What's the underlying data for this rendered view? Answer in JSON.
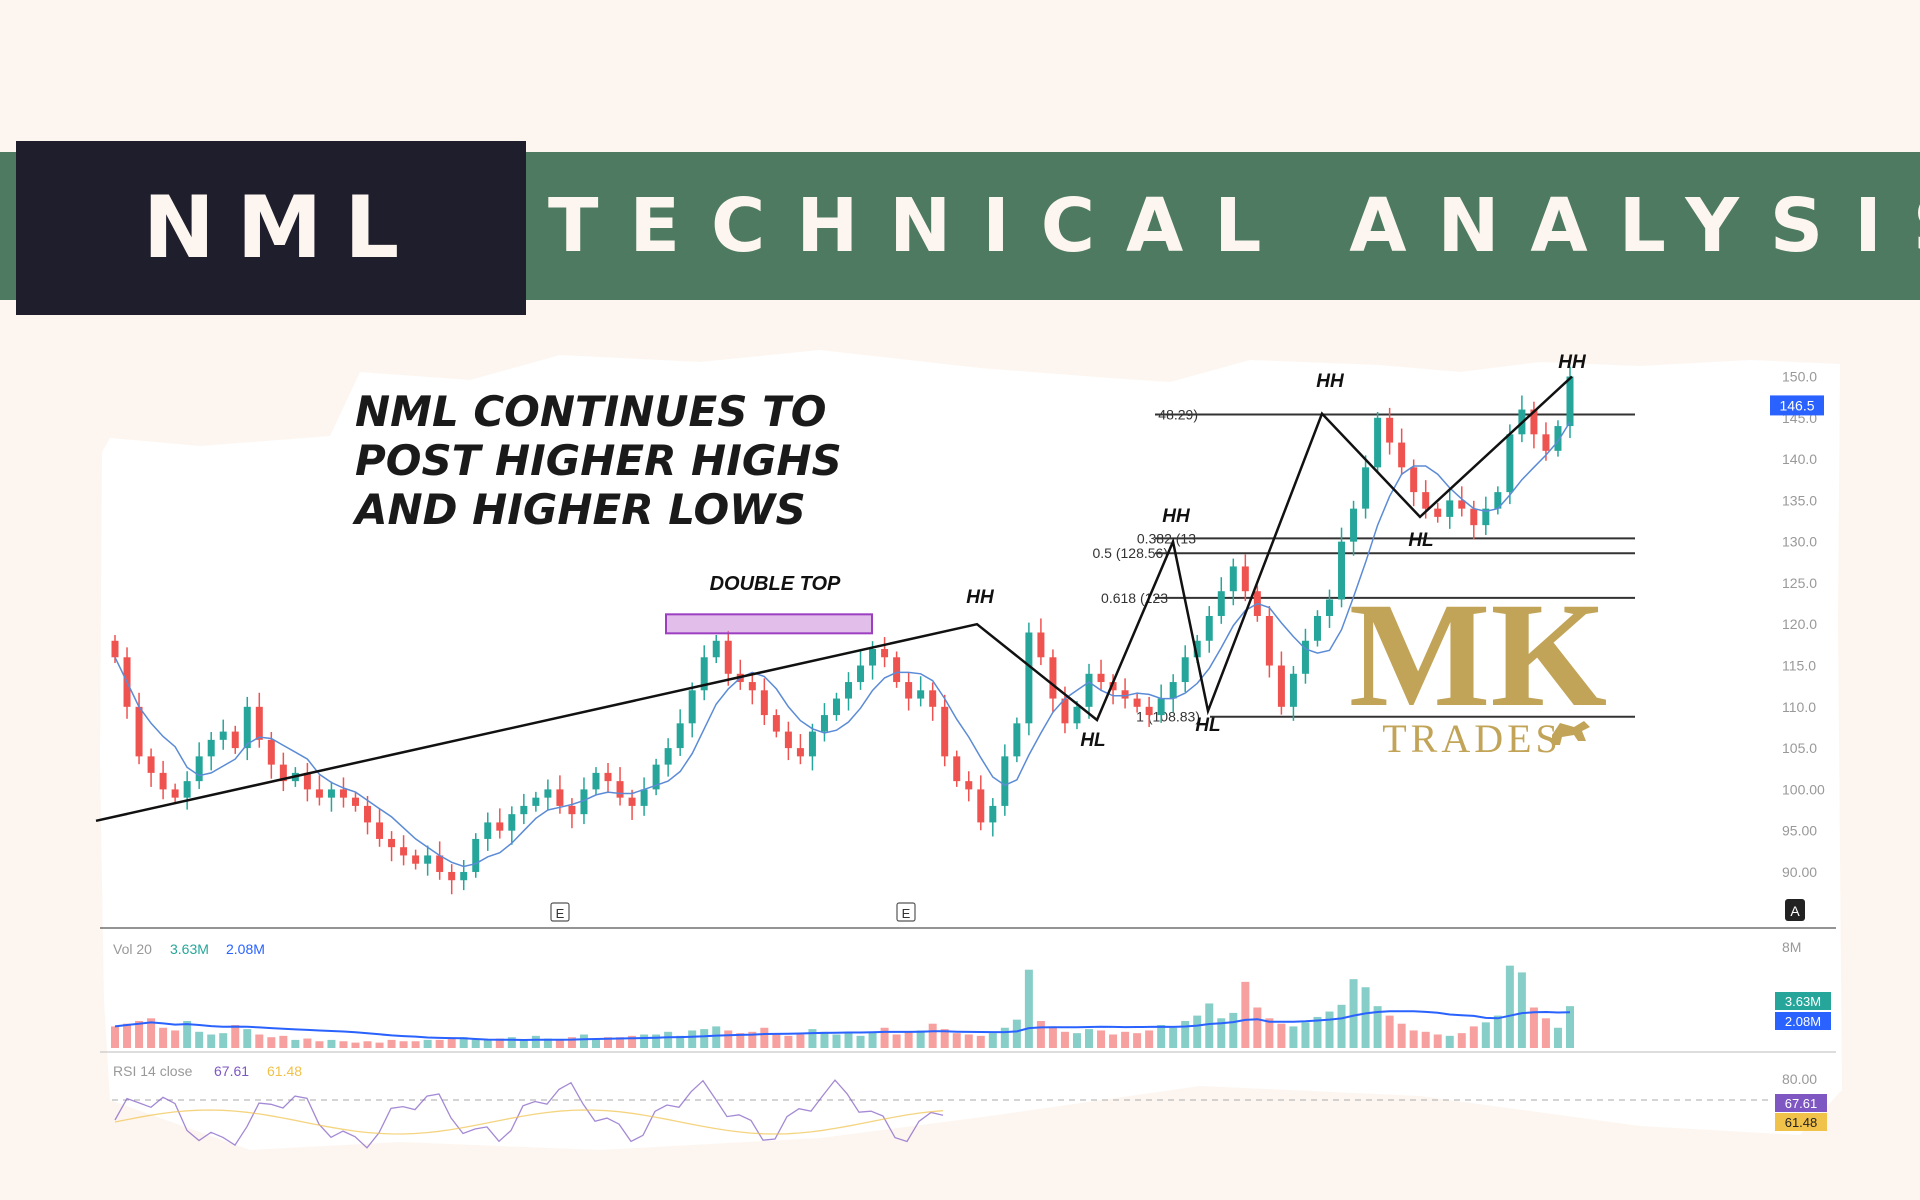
{
  "banner": {
    "ticker": "NML",
    "title": "TECHNICAL ANALYSIS"
  },
  "colors": {
    "background": "#fdf6f0",
    "banner_green": "#4e7a61",
    "banner_dark": "#1e1e2c",
    "candle_up": "#26a69a",
    "candle_down": "#ef5350",
    "ma_line": "#5b8bd6",
    "highlight_box": "#c98ad8",
    "logo_gold": "#b8953c",
    "volume_ma": "#2962ff"
  },
  "headline": [
    "NML CONTINUES TO",
    "POST HIGHER HIGHS",
    "AND HIGHER LOWS"
  ],
  "watermark": {
    "logo": "MK",
    "sub": "TRADES"
  },
  "chart_data": {
    "type": "candlestick",
    "title": "NML CONTINUES TO POST HIGHER HIGHS AND HIGHER LOWS",
    "price_axis": {
      "ylim": [
        86,
        152
      ],
      "ticks": [
        "150.0",
        "145.0",
        "140.0",
        "135.0",
        "130.0",
        "125.0",
        "120.0",
        "115.0",
        "110.0",
        "105.0",
        "100.00",
        "95.00",
        "90.00"
      ]
    },
    "last_price_label": "146.5",
    "price_path": [
      116,
      110,
      104,
      102,
      100,
      99,
      101,
      104,
      106,
      107,
      105,
      110,
      106,
      103,
      101,
      102,
      100,
      99,
      100,
      99,
      98,
      96,
      94,
      93,
      92,
      91,
      92,
      90,
      89,
      90,
      94,
      96,
      95,
      97,
      98,
      99,
      100,
      98,
      97,
      100,
      102,
      101,
      99,
      98,
      100,
      103,
      105,
      108,
      112,
      116,
      118,
      114,
      113,
      112,
      109,
      107,
      105,
      104,
      107,
      109,
      111,
      113,
      115,
      117,
      116,
      113,
      111,
      112,
      110,
      104,
      101,
      100,
      96,
      98,
      104,
      108,
      119,
      116,
      111,
      108,
      110,
      114,
      113,
      112,
      111,
      110,
      109,
      111,
      113,
      116,
      118,
      121,
      124,
      127,
      124,
      121,
      115,
      110,
      114,
      118,
      121,
      123,
      130,
      134,
      139,
      145,
      142,
      139,
      136,
      134,
      133,
      135,
      134,
      132,
      134,
      136,
      143,
      146,
      143,
      141,
      144,
      150
    ],
    "annotations": [
      {
        "label": "DOUBLE TOP",
        "price": 120.0
      },
      {
        "label": "HH",
        "price": 120.0
      },
      {
        "label": "HL",
        "price": 108.4
      },
      {
        "label": "HH",
        "price": 130.0
      },
      {
        "label": "HL",
        "price": 109.5
      },
      {
        "label": "HH",
        "price": 145.5
      },
      {
        "label": "HL",
        "price": 133.0
      },
      {
        "label": "HH",
        "price": 150.0
      }
    ],
    "fib_levels": [
      {
        "label": "48.29)",
        "price": 145.4
      },
      {
        "label": "0.382 (13",
        "price": 130.4
      },
      {
        "label": "0.5 (128.56)",
        "price": 128.6
      },
      {
        "label": "0.618 (123",
        "price": 123.2
      },
      {
        "label": "1 (108.83)",
        "price": 108.8
      }
    ],
    "earnings_markers": [
      "E",
      "E"
    ],
    "volume": {
      "label": "Vol 20",
      "value1": "3.63M",
      "value2": "2.08M",
      "axis_label": "8M",
      "badge1": "3.63M",
      "badge2": "2.08M",
      "bars": [
        1.6,
        1.8,
        2.0,
        2.2,
        1.5,
        1.3,
        2.0,
        1.2,
        1.0,
        1.1,
        1.7,
        1.4,
        1.0,
        0.8,
        0.9,
        0.6,
        0.7,
        0.5,
        0.6,
        0.5,
        0.4,
        0.5,
        0.4,
        0.6,
        0.5,
        0.5,
        0.6,
        0.6,
        0.7,
        0.8,
        0.7,
        0.6,
        0.7,
        0.8,
        0.6,
        0.9,
        0.7,
        0.6,
        0.8,
        1.0,
        0.7,
        0.8,
        0.8,
        0.9,
        1.0,
        1.0,
        1.2,
        0.9,
        1.3,
        1.4,
        1.6,
        1.3,
        1.1,
        1.2,
        1.5,
        1.1,
        0.9,
        1.0,
        1.4,
        1.2,
        1.0,
        1.1,
        0.9,
        1.2,
        1.5,
        1.0,
        1.2,
        1.3,
        1.8,
        1.4,
        1.1,
        1.0,
        0.9,
        1.1,
        1.5,
        2.1,
        5.8,
        2.0,
        1.6,
        1.2,
        1.1,
        1.4,
        1.3,
        1.0,
        1.2,
        1.1,
        1.3,
        1.7,
        1.5,
        2.0,
        2.4,
        3.3,
        2.2,
        2.6,
        4.9,
        3.0,
        2.2,
        1.8,
        1.6,
        1.9,
        2.3,
        2.7,
        3.2,
        5.1,
        4.5,
        3.1,
        2.4,
        1.8,
        1.3,
        1.2,
        1.0,
        0.9,
        1.1,
        1.6,
        1.9,
        2.4,
        6.1,
        5.6,
        3.0,
        2.2,
        1.5,
        3.1
      ]
    },
    "rsi": {
      "label": "RSI 14 close",
      "value1": "67.61",
      "value2": "61.48",
      "axis_label": "80.00",
      "badge1": "67.61",
      "badge2": "61.48"
    }
  }
}
